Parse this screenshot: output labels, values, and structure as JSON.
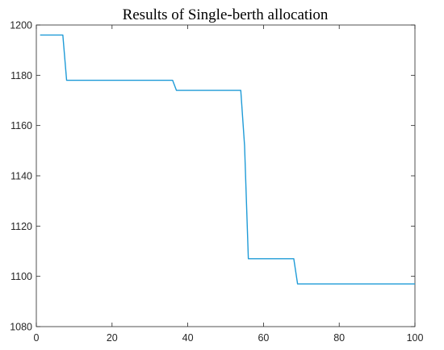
{
  "chart_data": {
    "type": "line",
    "title": "Results of Single-berth allocation",
    "xlabel": "",
    "ylabel": "",
    "xlim": [
      0,
      100
    ],
    "ylim": [
      1080,
      1200
    ],
    "xticks": [
      0,
      20,
      40,
      60,
      80,
      100
    ],
    "yticks": [
      1080,
      1100,
      1120,
      1140,
      1160,
      1180,
      1200
    ],
    "grid": false,
    "line_color": "#1f9bd7",
    "series": [
      {
        "x": [
          1,
          7,
          8,
          36,
          37,
          54,
          55,
          56,
          68,
          69,
          100
        ],
        "y": [
          1196,
          1196,
          1178,
          1178,
          1174,
          1174,
          1152,
          1107,
          1107,
          1097,
          1097
        ]
      }
    ]
  }
}
